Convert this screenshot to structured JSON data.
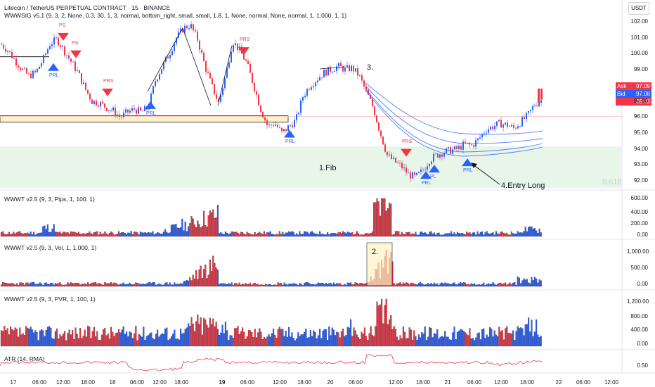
{
  "header": {
    "symbol_line": "Litecoin / TetherUS PERPETUAL CONTRACT · 15 · BINANCE",
    "indicator_line": "WWWSIG v5.1 (9, 3, 2, None, 0.3, 30, 1, 3, normal, bottom_right, small, small, 1.8, 1, None, normal, None, normal, 1, 1,000, 1, 1)",
    "currency_button": "USDT"
  },
  "chart_data": [
    {
      "type": "line",
      "pane": "price",
      "yticks": [
        "102.00",
        "101.00",
        "100.00",
        "99.00",
        "97.00",
        "96.00",
        "95.00",
        "94.00",
        "93.00",
        "92.00"
      ],
      "ylim": [
        91.5,
        102.4
      ],
      "close_path": [
        [
          0,
          100.6
        ],
        [
          10,
          100.2
        ],
        [
          20,
          99.6
        ],
        [
          30,
          99.0
        ],
        [
          40,
          98.6
        ],
        [
          50,
          98.8
        ],
        [
          60,
          99.6
        ],
        [
          70,
          100.6
        ],
        [
          80,
          100.9
        ],
        [
          90,
          100.2
        ],
        [
          100,
          99.5
        ],
        [
          110,
          98.8
        ],
        [
          120,
          97.8
        ],
        [
          130,
          97.0
        ],
        [
          140,
          96.9
        ],
        [
          150,
          96.6
        ],
        [
          160,
          96.4
        ],
        [
          170,
          96.0
        ],
        [
          180,
          96.3
        ],
        [
          190,
          96.5
        ],
        [
          200,
          96.3
        ],
        [
          210,
          96.6
        ],
        [
          220,
          98.3
        ],
        [
          230,
          99.2
        ],
        [
          240,
          100.0
        ],
        [
          250,
          101.0
        ],
        [
          260,
          101.6
        ],
        [
          270,
          101.8
        ],
        [
          280,
          100.9
        ],
        [
          290,
          99.3
        ],
        [
          300,
          98.0
        ],
        [
          310,
          96.9
        ],
        [
          320,
          98.6
        ],
        [
          330,
          100.8
        ],
        [
          340,
          100.2
        ],
        [
          350,
          99.4
        ],
        [
          360,
          98.0
        ],
        [
          370,
          96.5
        ],
        [
          380,
          95.4
        ],
        [
          390,
          95.6
        ],
        [
          400,
          95.0
        ],
        [
          410,
          95.4
        ],
        [
          420,
          95.8
        ],
        [
          430,
          97.3
        ],
        [
          440,
          98.0
        ],
        [
          450,
          98.4
        ],
        [
          460,
          98.8
        ],
        [
          470,
          99.0
        ],
        [
          480,
          99.2
        ],
        [
          490,
          99.0
        ],
        [
          500,
          99.1
        ],
        [
          510,
          98.6
        ],
        [
          520,
          97.6
        ],
        [
          530,
          96.6
        ],
        [
          540,
          95.0
        ],
        [
          550,
          93.6
        ],
        [
          560,
          93.2
        ],
        [
          570,
          92.9
        ],
        [
          580,
          92.4
        ],
        [
          590,
          92.2
        ],
        [
          600,
          92.6
        ],
        [
          610,
          93.3
        ],
        [
          620,
          93.6
        ],
        [
          630,
          93.8
        ],
        [
          640,
          93.9
        ],
        [
          650,
          94.0
        ],
        [
          660,
          94.3
        ],
        [
          670,
          94.2
        ],
        [
          680,
          94.6
        ],
        [
          690,
          95.2
        ],
        [
          700,
          95.4
        ],
        [
          710,
          95.6
        ],
        [
          720,
          95.5
        ],
        [
          730,
          95.3
        ],
        [
          740,
          95.7
        ],
        [
          750,
          96.1
        ],
        [
          760,
          96.8
        ],
        [
          770,
          97.09
        ]
      ],
      "ribbons": [
        {
          "name": "",
          "color": "#2962ff"
        }
      ],
      "zones": [
        {
          "type": "supply",
          "price_low": 95.8,
          "price_high": 96.0
        },
        {
          "type": "fib",
          "label": "0.618",
          "price_low": 91.9,
          "price_high": 94.15
        }
      ],
      "signals": [
        {
          "label": "PS",
          "kind": "sell",
          "t": 90,
          "price": 101.3
        },
        {
          "label": "PS",
          "kind": "sell",
          "t": 108,
          "price": 100.2
        },
        {
          "label": "PRL",
          "kind": "buy",
          "t": 76,
          "price": 99.4
        },
        {
          "label": "PRS",
          "kind": "sell",
          "t": 153,
          "price": 97.8
        },
        {
          "label": "PRL",
          "kind": "buy",
          "t": 214,
          "price": 97.0
        },
        {
          "label": "PRS",
          "kind": "sell",
          "t": 347,
          "price": 100.4
        },
        {
          "label": "PRL",
          "kind": "buy",
          "t": 412,
          "price": 95.2
        },
        {
          "label": "PRS",
          "kind": "sell",
          "t": 578,
          "price": 94.0
        },
        {
          "label": "PRL",
          "kind": "buy",
          "t": 606,
          "price": 92.6
        },
        {
          "label": "PL",
          "kind": "buy",
          "t": 618,
          "price": 93.0
        },
        {
          "label": "PRL",
          "kind": "buy",
          "t": 665,
          "price": 93.4
        }
      ],
      "annotations": [
        "1.Fib",
        "3.",
        "4.Entry Long",
        "0.618"
      ],
      "ask": {
        "label": "Ask",
        "value": "97.09"
      },
      "bid": {
        "label": "Bid",
        "value": "97.08"
      },
      "countdown": "05:43"
    },
    {
      "type": "bar",
      "pane": "wwwt_pips",
      "title": "WWWT v2.5 (9, 3, Pips, 1, 100, 1)",
      "yticks": [
        "600.00",
        "400.00",
        "200.00",
        "0.00"
      ],
      "ylim": [
        0,
        600
      ]
    },
    {
      "type": "bar",
      "pane": "wwwt_vol",
      "title": "WWWT v2.5 (9, 3, Vol, 1, 1,000, 1)",
      "yticks": [
        "1,000.00",
        "500.00",
        "0.00"
      ],
      "ylim": [
        0,
        1100
      ],
      "annotation": "2."
    },
    {
      "type": "bar",
      "pane": "wwwt_pvr",
      "title": "WWWT v2.5 (9, 3, PVR, 1, 100, 1)",
      "yticks": [
        "1,200.00",
        "800.00",
        "400.00",
        "0.00"
      ],
      "ylim": [
        0,
        1300
      ]
    },
    {
      "type": "line",
      "pane": "atr",
      "title": "ATR (14, RMA)",
      "yticks": [
        "0.50"
      ],
      "color": "#f23645"
    }
  ],
  "xaxis": {
    "ticks": [
      {
        "label": "17",
        "bold": false
      },
      {
        "label": "06:00",
        "bold": false
      },
      {
        "label": "12:00",
        "bold": false
      },
      {
        "label": "18:00",
        "bold": false
      },
      {
        "label": "18",
        "bold": false
      },
      {
        "label": "06:00",
        "bold": false
      },
      {
        "label": "12:00",
        "bold": false
      },
      {
        "label": "18:00",
        "bold": false
      },
      {
        "label": "19",
        "bold": true
      },
      {
        "label": "06:00",
        "bold": false
      },
      {
        "label": "12:00",
        "bold": false
      },
      {
        "label": "18:00",
        "bold": false
      },
      {
        "label": "20",
        "bold": false
      },
      {
        "label": "06:00",
        "bold": false
      },
      {
        "label": "12:00",
        "bold": false
      },
      {
        "label": "18:00",
        "bold": false
      },
      {
        "label": "21",
        "bold": false
      },
      {
        "label": "06:00",
        "bold": false
      },
      {
        "label": "12:00",
        "bold": false
      },
      {
        "label": "18:00",
        "bold": false
      },
      {
        "label": "22",
        "bold": false
      },
      {
        "label": "06:00",
        "bold": false
      },
      {
        "label": "12:00",
        "bold": false
      }
    ]
  }
}
